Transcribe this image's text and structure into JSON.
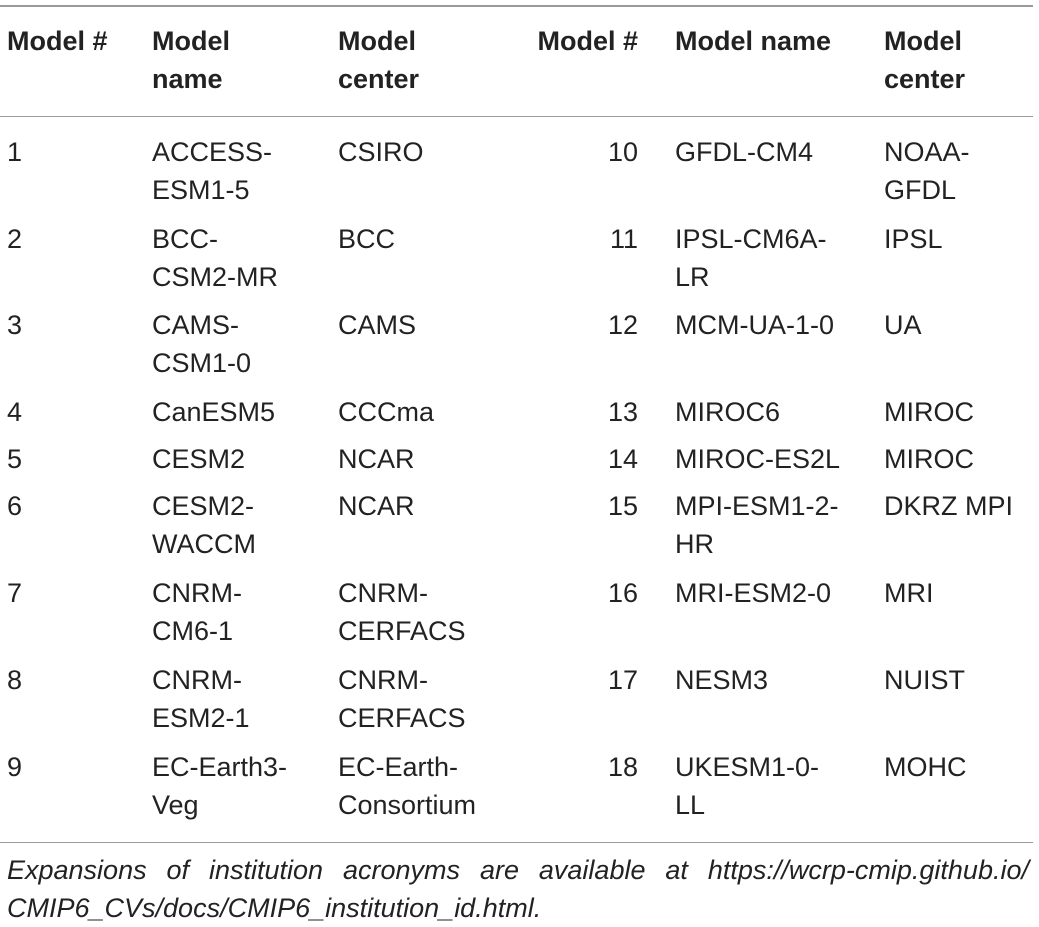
{
  "headers": {
    "model_num_left": "Model #",
    "model_name_left": "Model\nname",
    "model_center_left": "Model\ncenter",
    "model_num_right": "Model #",
    "model_name_right": "Model name",
    "model_center_right": "Model\ncenter"
  },
  "rows": [
    {
      "n1": "1",
      "name1": "ACCESS-\nESM1-5",
      "center1": "CSIRO",
      "n2": "10",
      "name2": "GFDL-CM4",
      "center2": "NOAA-\nGFDL"
    },
    {
      "n1": "2",
      "name1": "BCC-\nCSM2-MR",
      "center1": "BCC",
      "n2": "11",
      "name2": "IPSL-CM6A-\nLR",
      "center2": "IPSL"
    },
    {
      "n1": "3",
      "name1": "CAMS-\nCSM1-0",
      "center1": "CAMS",
      "n2": "12",
      "name2": "MCM-UA-1-0",
      "center2": "UA"
    },
    {
      "n1": "4",
      "name1": "CanESM5",
      "center1": "CCCma",
      "n2": "13",
      "name2": "MIROC6",
      "center2": "MIROC"
    },
    {
      "n1": "5",
      "name1": "CESM2",
      "center1": "NCAR",
      "n2": "14",
      "name2": "MIROC-ES2L",
      "center2": "MIROC"
    },
    {
      "n1": "6",
      "name1": "CESM2-\nWACCM",
      "center1": "NCAR",
      "n2": "15",
      "name2": "MPI-ESM1-2-\nHR",
      "center2": "DKRZ MPI"
    },
    {
      "n1": "7",
      "name1": "CNRM-\nCM6-1",
      "center1": "CNRM-\nCERFACS",
      "n2": "16",
      "name2": "MRI-ESM2-0",
      "center2": "MRI"
    },
    {
      "n1": "8",
      "name1": "CNRM-\nESM2-1",
      "center1": "CNRM-\nCERFACS",
      "n2": "17",
      "name2": "NESM3",
      "center2": "NUIST"
    },
    {
      "n1": "9",
      "name1": "EC-Earth3-\nVeg",
      "center1": "EC-Earth-\nConsortium",
      "n2": "18",
      "name2": "UKESM1-0-\nLL",
      "center2": "MOHC"
    }
  ],
  "footnote": "Expansions of institution acronyms are available at https://wcrp-cmip.github.io/ CMIP6_CVs/docs/CMIP6_institution_id.html."
}
